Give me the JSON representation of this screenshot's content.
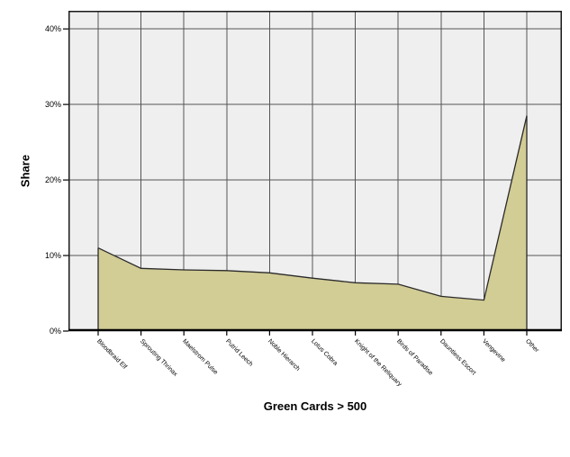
{
  "chart_data": {
    "type": "area",
    "title": "",
    "xlabel": "Green Cards > 500",
    "ylabel": "Share",
    "categories": [
      "Bloodbraid Elf",
      "Sprouting Thrinax",
      "Maelstrom Pulse",
      "Putrid Leech",
      "Noble Hierarch",
      "Lotus Cobra",
      "Knight of the Reliquary",
      "Birds of Paradise",
      "Dauntless Escort",
      "Vengevine",
      "Other"
    ],
    "series": [
      {
        "name": "Share",
        "values": [
          11.0,
          8.3,
          8.1,
          8.0,
          7.7,
          7.0,
          6.4,
          6.2,
          4.6,
          4.1,
          28.5
        ]
      }
    ],
    "y_tick_labels": [
      "0%",
      "10%",
      "20%",
      "30%",
      "40%"
    ],
    "y_tick_values": [
      0,
      10,
      20,
      30,
      40
    ],
    "ylim": [
      0,
      42.4
    ],
    "grid": true,
    "legend_position": "none",
    "colors": {
      "area_fill": "#d2cc95",
      "area_stroke": "#2a2a2a",
      "plot_background": "#efefef",
      "gridline": "#545454",
      "frame": "#1a1a1a",
      "axis_line": "#000000",
      "text": "#000000",
      "page_background": "#ffffff"
    }
  }
}
